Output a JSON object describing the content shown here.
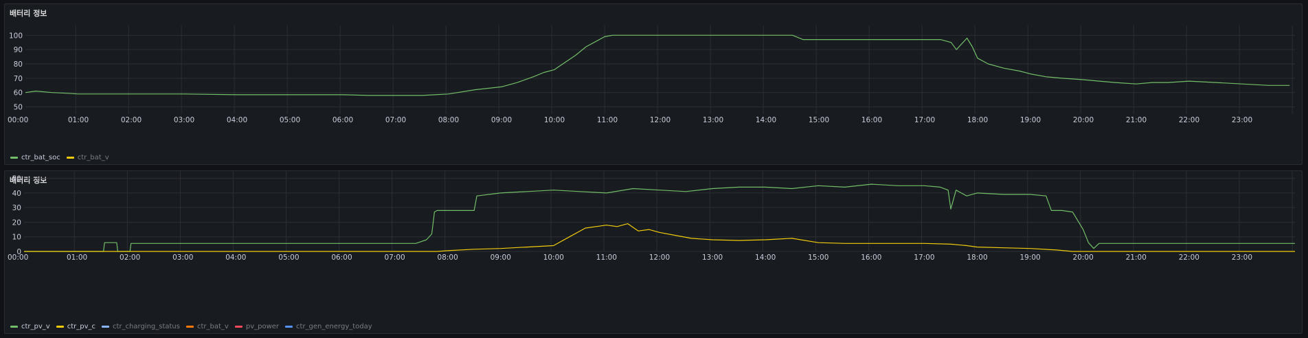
{
  "panels": [
    {
      "title": "배터리 정보",
      "legend": [
        {
          "name": "ctr_bat_soc",
          "color": "#73bf69",
          "dim": false
        },
        {
          "name": "ctr_bat_v",
          "color": "#f2cc0c",
          "dim": true
        }
      ]
    },
    {
      "title": "배터리 정보",
      "legend": [
        {
          "name": "ctr_pv_v",
          "color": "#73bf69",
          "dim": false
        },
        {
          "name": "ctr_pv_c",
          "color": "#f2cc0c",
          "dim": false
        },
        {
          "name": "ctr_charging_status",
          "color": "#8ab8ff",
          "dim": true
        },
        {
          "name": "ctr_bat_v",
          "color": "#ff780a",
          "dim": true
        },
        {
          "name": "pv_power",
          "color": "#f2495c",
          "dim": true
        },
        {
          "name": "ctr_gen_energy_today",
          "color": "#5794f2",
          "dim": true
        }
      ]
    }
  ],
  "chart_data": [
    {
      "type": "line",
      "title": "배터리 정보",
      "x_ticks": [
        "00:00",
        "01:00",
        "02:00",
        "03:00",
        "04:00",
        "05:00",
        "06:00",
        "07:00",
        "08:00",
        "09:00",
        "10:00",
        "11:00",
        "12:00",
        "13:00",
        "14:00",
        "15:00",
        "16:00",
        "17:00",
        "18:00",
        "19:00",
        "20:00",
        "21:00",
        "22:00",
        "23:00"
      ],
      "y_ticks": [
        50,
        60,
        70,
        80,
        90,
        100
      ],
      "ylim": [
        45,
        104
      ],
      "xlim_hours": [
        0,
        24
      ],
      "grid": true,
      "legend_position": "bottom-left",
      "series": [
        {
          "name": "ctr_bat_soc",
          "color": "#73bf69",
          "x_hours": [
            0,
            0.2,
            0.5,
            0.8,
            1.0,
            1.5,
            2.0,
            2.5,
            3.0,
            4.0,
            5.0,
            6.0,
            6.5,
            7.0,
            7.5,
            8.0,
            8.5,
            9.0,
            9.3,
            9.6,
            9.8,
            10.0,
            10.2,
            10.4,
            10.6,
            10.8,
            10.95,
            11.1,
            12.0,
            13.0,
            14.0,
            14.5,
            14.7,
            15.0,
            16.0,
            17.0,
            17.3,
            17.5,
            17.6,
            17.7,
            17.8,
            17.9,
            18.0,
            18.2,
            18.5,
            18.8,
            19.0,
            19.3,
            19.6,
            20.0,
            20.3,
            20.6,
            21.0,
            21.3,
            21.6,
            22.0,
            22.5,
            23.0,
            23.5,
            23.9
          ],
          "values": [
            60,
            61,
            60,
            59.5,
            59,
            59,
            59,
            59,
            59,
            58.5,
            58.5,
            58.5,
            58,
            58,
            58,
            59,
            62,
            64,
            67,
            71,
            74,
            76,
            81,
            86,
            92,
            96,
            99,
            100,
            100,
            100,
            100,
            100,
            97,
            97,
            97,
            97,
            97,
            95,
            90,
            94,
            98,
            92,
            84,
            80,
            77,
            75,
            73,
            71,
            70,
            69,
            68,
            67,
            66,
            67,
            67,
            68,
            67,
            66,
            65,
            65
          ]
        }
      ]
    },
    {
      "type": "line",
      "title": "배터리 정보",
      "x_ticks": [
        "00:00",
        "01:00",
        "02:00",
        "03:00",
        "04:00",
        "05:00",
        "06:00",
        "07:00",
        "08:00",
        "09:00",
        "10:00",
        "11:00",
        "12:00",
        "13:00",
        "14:00",
        "15:00",
        "16:00",
        "17:00",
        "18:00",
        "19:00",
        "20:00",
        "21:00",
        "22:00",
        "23:00"
      ],
      "y_ticks": [
        0,
        10,
        20,
        30,
        40,
        50
      ],
      "ylim": [
        0,
        55
      ],
      "xlim_hours": [
        0,
        24
      ],
      "grid": true,
      "legend_position": "bottom-left",
      "series": [
        {
          "name": "ctr_pv_v",
          "color": "#73bf69",
          "x_hours": [
            0,
            1.5,
            1.52,
            1.75,
            1.77,
            2.0,
            2.02,
            3.0,
            4.0,
            5.0,
            6.0,
            7.0,
            7.4,
            7.6,
            7.7,
            7.75,
            7.8,
            8.0,
            8.3,
            8.5,
            8.55,
            9.0,
            9.5,
            10.0,
            10.5,
            11.0,
            11.5,
            12.0,
            12.5,
            13.0,
            13.5,
            14.0,
            14.5,
            15.0,
            15.5,
            16.0,
            16.5,
            17.0,
            17.3,
            17.45,
            17.5,
            17.6,
            17.8,
            18.0,
            18.5,
            19.0,
            19.3,
            19.4,
            19.6,
            19.8,
            20.0,
            20.1,
            20.2,
            20.3,
            21.0,
            22.0,
            23.0,
            24.0
          ],
          "values": [
            0,
            0,
            6,
            6,
            0,
            0,
            5.5,
            5.5,
            5.5,
            5.5,
            5.5,
            5.5,
            5.5,
            8,
            12,
            27,
            28,
            28,
            28,
            28,
            38,
            40,
            41,
            42,
            41,
            40,
            43,
            42,
            41,
            43,
            44,
            44,
            43,
            45,
            44,
            46,
            45,
            45,
            44,
            42,
            29,
            42,
            38,
            40,
            39,
            39,
            38,
            28,
            28,
            27,
            15,
            6,
            2,
            5.5,
            5.5,
            5.5,
            5.5,
            5.5
          ]
        },
        {
          "name": "ctr_pv_c",
          "color": "#f2cc0c",
          "x_hours": [
            0,
            7.8,
            8.0,
            8.5,
            9.0,
            9.5,
            10.0,
            10.3,
            10.6,
            11.0,
            11.2,
            11.4,
            11.6,
            11.8,
            12.0,
            12.3,
            12.6,
            13.0,
            13.5,
            14.0,
            14.5,
            15.0,
            15.5,
            16.0,
            16.5,
            17.0,
            17.5,
            17.8,
            18.0,
            18.5,
            19.0,
            19.5,
            19.8,
            24.0
          ],
          "values": [
            0,
            0,
            0.5,
            1.5,
            2,
            3,
            4,
            10,
            16,
            18,
            17,
            19,
            14,
            15,
            13,
            11,
            9,
            8,
            7.5,
            8,
            9,
            6,
            5.5,
            5.5,
            5.5,
            5.5,
            5,
            4,
            3,
            2.5,
            2,
            1,
            0,
            0
          ]
        }
      ]
    }
  ]
}
